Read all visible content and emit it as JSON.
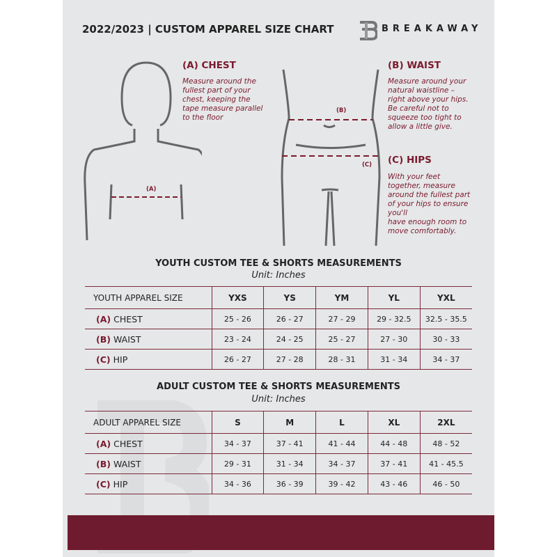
{
  "header": {
    "title": "2022/2023  |  CUSTOM APPAREL SIZE CHART",
    "brand": "BREAKAWAY"
  },
  "chest": {
    "heading": "(A) CHEST",
    "label": "(A)",
    "lines": [
      "Measure around the",
      "fullest part of your",
      "chest, keeping the",
      "tape measure parallel",
      "to the floor"
    ]
  },
  "waist": {
    "heading": "(B) WAIST",
    "label": "(B)",
    "lines": [
      "Measure around your",
      "natural waistline –",
      "right above your hips.",
      "Be careful not to",
      "squeeze too tight to",
      "allow a little give."
    ]
  },
  "hips": {
    "heading": "(C) HIPS",
    "label": "(C)",
    "lines": [
      "With your feet",
      "together, measure",
      "around the fullest part",
      "of your hips to ensure",
      "you'll",
      "have enough room to",
      "move comfortably."
    ]
  },
  "youth": {
    "title": "YOUTH CUSTOM TEE & SHORTS MEASUREMENTS",
    "unit": "Unit: Inches",
    "header": [
      "YOUTH APPAREL SIZE",
      "YXS",
      "YS",
      "YM",
      "YL",
      "YXL"
    ],
    "rows": [
      {
        "tag": "(A)",
        "name": "CHEST",
        "values": [
          "25 - 26",
          "26 - 27",
          "27 - 29",
          "29 - 32.5",
          "32.5 - 35.5"
        ]
      },
      {
        "tag": "(B)",
        "name": "WAIST",
        "values": [
          "23 - 24",
          "24 - 25",
          "25 - 27",
          "27 - 30",
          "30 - 33"
        ]
      },
      {
        "tag": "(C)",
        "name": "HIP",
        "values": [
          "26 - 27",
          "27 - 28",
          "28 - 31",
          "31 - 34",
          "34 - 37"
        ]
      }
    ]
  },
  "adult": {
    "title": "ADULT CUSTOM TEE & SHORTS MEASUREMENTS",
    "unit": "Unit: Inches",
    "header": [
      "ADULT APPAREL SIZE",
      "S",
      "M",
      "L",
      "XL",
      "2XL"
    ],
    "rows": [
      {
        "tag": "(A)",
        "name": "CHEST",
        "values": [
          "34 - 37",
          "37 - 41",
          "41 - 44",
          "44 - 48",
          "48 - 52"
        ]
      },
      {
        "tag": "(B)",
        "name": "WAIST",
        "values": [
          "29 - 31",
          "31 - 34",
          "34 - 37",
          "37 - 41",
          "41 - 45.5"
        ]
      },
      {
        "tag": "(C)",
        "name": "HIP",
        "values": [
          "34 - 36",
          "36 - 39",
          "39 - 42",
          "43 - 46",
          "46 - 50"
        ]
      }
    ]
  },
  "colors": {
    "accent": "#7a1a2e",
    "footer": "#6f1b2f",
    "page": "#e6e7e8"
  }
}
